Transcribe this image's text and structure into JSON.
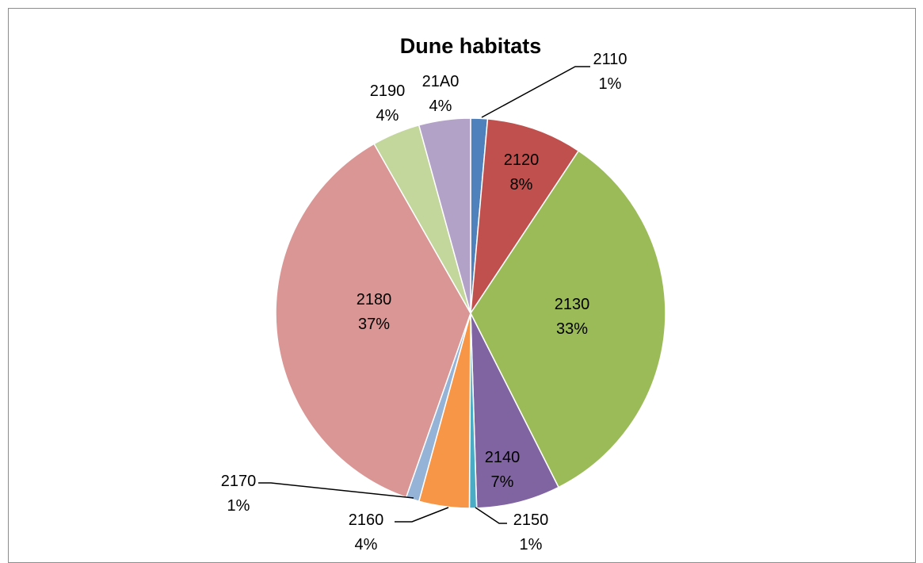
{
  "chart_data": {
    "type": "pie",
    "title": "Dune habitats",
    "slices": [
      {
        "label": "2110",
        "percent_label": "1%",
        "value": 1.4,
        "color": "#4F81BD"
      },
      {
        "label": "2120",
        "percent_label": "8%",
        "value": 8.0,
        "color": "#C0504D"
      },
      {
        "label": "2130",
        "percent_label": "33%",
        "value": 33.4,
        "color": "#9BBB59"
      },
      {
        "label": "2140",
        "percent_label": "7%",
        "value": 7.0,
        "color": "#8064A2"
      },
      {
        "label": "2150",
        "percent_label": "1%",
        "value": 0.6,
        "color": "#4BACC6"
      },
      {
        "label": "2160",
        "percent_label": "4%",
        "value": 4.2,
        "color": "#F79646"
      },
      {
        "label": "2170",
        "percent_label": "1%",
        "value": 1.1,
        "color": "#95B3D7"
      },
      {
        "label": "2180",
        "percent_label": "37%",
        "value": 36.6,
        "color": "#D99694"
      },
      {
        "label": "2190",
        "percent_label": "4%",
        "value": 4.0,
        "color": "#C3D69B"
      },
      {
        "label": "21A0",
        "percent_label": "4%",
        "value": 4.3,
        "color": "#B2A2C7"
      }
    ]
  }
}
